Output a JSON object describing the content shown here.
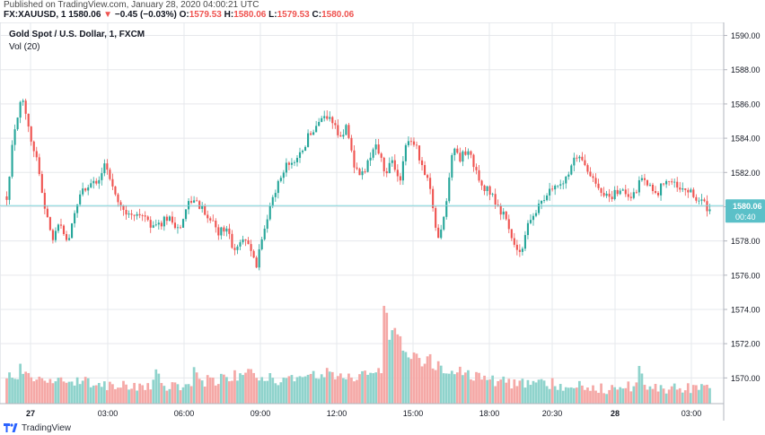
{
  "header": {
    "published": "Published on TradingView.com, January 28, 2020 04:00:21 UTC",
    "symbol": "FX:XAUUSD, 1",
    "last": "1580.06",
    "change_arrow": "▼",
    "change": "−0.45 (−0.03%)",
    "o_label": "O:",
    "o_value": "1579.53",
    "h_label": "H:",
    "h_value": "1580.06",
    "l_label": "L:",
    "l_value": "1579.53",
    "c_label": "C:",
    "c_value": "1580.06"
  },
  "footer": {
    "brand": "TradingView",
    "logo_icon": "tradingview-logo-icon"
  },
  "colors": {
    "up": "#26a69a",
    "down": "#ef5350",
    "vol_up": "#8fd3cc",
    "vol_down": "#f5a8a6",
    "grid": "#e6e8ec",
    "price_line": "#7fd3d8",
    "price_tag_bg": "#5bc0c8",
    "axis_text": "#131722"
  },
  "chart_data": {
    "type": "candlestick",
    "title": "Gold Spot / U.S. Dollar, 1, FXCM",
    "indicator_label": "Vol (20)",
    "xlabel": "",
    "ylabel": "",
    "ylim": [
      1568.5,
      1590.5
    ],
    "y_ticks": [
      "1590.00",
      "1588.00",
      "1586.00",
      "1584.00",
      "1582.00",
      "1580.00",
      "1578.00",
      "1576.00",
      "1574.00",
      "1572.00",
      "1570.00"
    ],
    "x_ticks": [
      "27",
      "03:00",
      "06:00",
      "09:00",
      "12:00",
      "15:00",
      "18:00",
      "20:30",
      "28",
      "03:00"
    ],
    "grid": true,
    "last_price": "1580.06",
    "countdown": "00:40",
    "price_path": [
      [
        0,
        1580.6
      ],
      [
        1,
        1584.5
      ],
      [
        2,
        1586.3
      ],
      [
        3,
        1584.2
      ],
      [
        4,
        1582.8
      ],
      [
        5,
        1580.1
      ],
      [
        6,
        1578.1
      ],
      [
        7,
        1578.9
      ],
      [
        8,
        1577.8
      ],
      [
        9,
        1579.6
      ],
      [
        10,
        1580.9
      ],
      [
        11,
        1581.5
      ],
      [
        12,
        1581.1
      ],
      [
        13,
        1582.5
      ],
      [
        14,
        1581.4
      ],
      [
        15,
        1580.1
      ],
      [
        16,
        1579.7
      ],
      [
        17,
        1579.3
      ],
      [
        18,
        1579.6
      ],
      [
        19,
        1579.0
      ],
      [
        20,
        1578.8
      ],
      [
        21,
        1579.4
      ],
      [
        22,
        1579.1
      ],
      [
        23,
        1578.7
      ],
      [
        24,
        1580.2
      ],
      [
        25,
        1580.4
      ],
      [
        26,
        1579.8
      ],
      [
        27,
        1579.2
      ],
      [
        28,
        1578.4
      ],
      [
        29,
        1578.9
      ],
      [
        30,
        1577.3
      ],
      [
        31,
        1578.2
      ],
      [
        32,
        1578.0
      ],
      [
        33,
        1576.4
      ],
      [
        34,
        1578.6
      ],
      [
        35,
        1580.5
      ],
      [
        36,
        1581.5
      ],
      [
        37,
        1582.4
      ],
      [
        38,
        1582.3
      ],
      [
        39,
        1583.2
      ],
      [
        40,
        1584.2
      ],
      [
        41,
        1584.8
      ],
      [
        42,
        1585.5
      ],
      [
        43,
        1584.9
      ],
      [
        44,
        1584.1
      ],
      [
        45,
        1584.6
      ],
      [
        46,
        1582.3
      ],
      [
        47,
        1581.8
      ],
      [
        48,
        1582.9
      ],
      [
        49,
        1583.6
      ],
      [
        50,
        1581.9
      ],
      [
        51,
        1582.6
      ],
      [
        52,
        1581.2
      ],
      [
        53,
        1584.1
      ],
      [
        54,
        1583.7
      ],
      [
        55,
        1582.1
      ],
      [
        56,
        1581.1
      ],
      [
        57,
        1578.1
      ],
      [
        58,
        1579.7
      ],
      [
        59,
        1583.6
      ],
      [
        60,
        1582.8
      ],
      [
        61,
        1583.4
      ],
      [
        62,
        1582.1
      ],
      [
        63,
        1581.2
      ],
      [
        64,
        1580.9
      ],
      [
        65,
        1580.0
      ],
      [
        66,
        1579.4
      ],
      [
        67,
        1577.9
      ],
      [
        68,
        1577.3
      ],
      [
        69,
        1579.1
      ],
      [
        70,
        1579.8
      ],
      [
        71,
        1580.4
      ],
      [
        72,
        1581.1
      ],
      [
        73,
        1581.3
      ],
      [
        74,
        1581.8
      ],
      [
        75,
        1582.7
      ],
      [
        76,
        1583.1
      ],
      [
        77,
        1582.0
      ],
      [
        78,
        1581.1
      ],
      [
        79,
        1580.8
      ],
      [
        80,
        1580.6
      ],
      [
        81,
        1580.9
      ],
      [
        82,
        1580.8
      ],
      [
        83,
        1580.7
      ],
      [
        84,
        1581.7
      ],
      [
        85,
        1581.1
      ],
      [
        86,
        1580.6
      ],
      [
        87,
        1581.6
      ],
      [
        88,
        1581.4
      ],
      [
        89,
        1580.9
      ],
      [
        90,
        1581.0
      ],
      [
        91,
        1580.5
      ],
      [
        92,
        1580.3
      ],
      [
        93,
        1579.8
      ]
    ],
    "volume_path": [
      [
        0,
        1570.3
      ],
      [
        2,
        1570.1
      ],
      [
        4,
        1569.9
      ],
      [
        6,
        1570.0
      ],
      [
        8,
        1569.8
      ],
      [
        10,
        1569.9
      ],
      [
        12,
        1569.7
      ],
      [
        14,
        1569.6
      ],
      [
        16,
        1569.5
      ],
      [
        18,
        1569.5
      ],
      [
        20,
        1569.6
      ],
      [
        22,
        1569.5
      ],
      [
        24,
        1569.7
      ],
      [
        26,
        1569.8
      ],
      [
        28,
        1569.9
      ],
      [
        30,
        1570.1
      ],
      [
        32,
        1570.3
      ],
      [
        34,
        1570.0
      ],
      [
        36,
        1569.9
      ],
      [
        38,
        1570.1
      ],
      [
        40,
        1570.2
      ],
      [
        42,
        1570.3
      ],
      [
        44,
        1570.1
      ],
      [
        46,
        1570.0
      ],
      [
        48,
        1570.2
      ],
      [
        50,
        1570.4
      ],
      [
        51,
        1573.0
      ],
      [
        52,
        1572.2
      ],
      [
        53,
        1571.4
      ],
      [
        55,
        1570.9
      ],
      [
        57,
        1570.7
      ],
      [
        59,
        1570.5
      ],
      [
        61,
        1570.3
      ],
      [
        63,
        1570.0
      ],
      [
        65,
        1569.8
      ],
      [
        67,
        1569.7
      ],
      [
        69,
        1569.8
      ],
      [
        71,
        1569.7
      ],
      [
        73,
        1569.6
      ],
      [
        75,
        1569.5
      ],
      [
        77,
        1569.5
      ],
      [
        79,
        1569.4
      ],
      [
        81,
        1569.4
      ],
      [
        83,
        1569.5
      ],
      [
        84,
        1570.0
      ],
      [
        85,
        1569.5
      ],
      [
        87,
        1569.4
      ],
      [
        89,
        1569.4
      ],
      [
        91,
        1569.3
      ],
      [
        93,
        1569.3
      ]
    ],
    "volume_spikes": [
      [
        2,
        1570.6
      ],
      [
        20,
        1570.5
      ],
      [
        25,
        1570.4
      ],
      [
        50,
        1574.0
      ],
      [
        51,
        1572.8
      ],
      [
        52,
        1572.0
      ],
      [
        56,
        1571.2
      ],
      [
        84,
        1570.6
      ]
    ]
  }
}
